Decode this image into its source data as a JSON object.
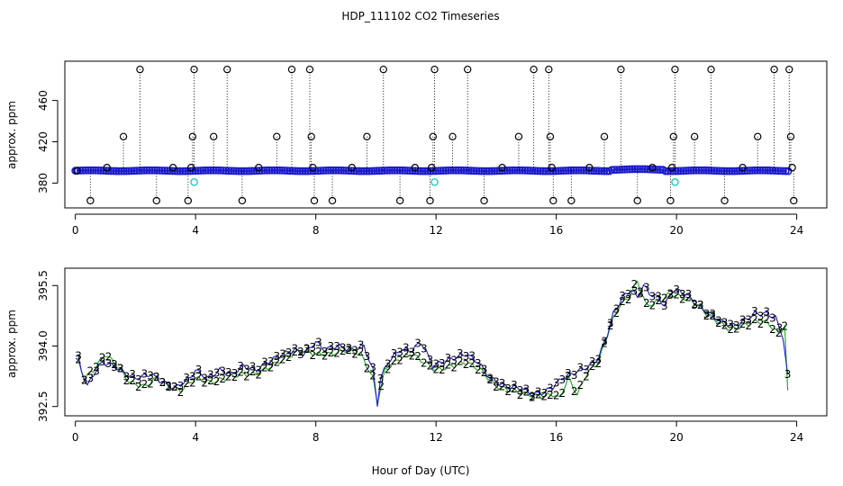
{
  "figure": {
    "title": "HDP_111102  CO2 Timeseries",
    "xlabel": "Hour of Day (UTC)"
  },
  "colors": {
    "black": "#000000",
    "blue": "#1a1acc",
    "green": "#1aa81a",
    "cyan": "#22c8c8"
  },
  "chart_data": [
    {
      "type": "scatter",
      "title": "HDP_111102  CO2 Timeseries",
      "xlabel": "",
      "ylabel": "approx. ppm",
      "xlim": [
        -0.35,
        25
      ],
      "ylim": [
        356,
        498
      ],
      "xticks": [
        0,
        4,
        8,
        12,
        16,
        20,
        24
      ],
      "yticks": [
        380,
        420,
        460
      ],
      "baseline_value": 392,
      "series": [
        {
          "name": "raw_black",
          "marker": "circle",
          "drop_lines": true,
          "points": [
            [
              0.05,
              392
            ],
            [
              0.5,
              363
            ],
            [
              1.05,
              395
            ],
            [
              1.6,
              425
            ],
            [
              2.15,
              490
            ],
            [
              2.7,
              363
            ],
            [
              3.25,
              395
            ],
            [
              3.75,
              363
            ],
            [
              3.85,
              395
            ],
            [
              3.9,
              425
            ],
            [
              3.95,
              490
            ],
            [
              4.6,
              425
            ],
            [
              5.05,
              490
            ],
            [
              5.55,
              363
            ],
            [
              6.1,
              395
            ],
            [
              6.7,
              425
            ],
            [
              7.2,
              490
            ],
            [
              7.8,
              490
            ],
            [
              7.85,
              425
            ],
            [
              7.9,
              395
            ],
            [
              7.95,
              363
            ],
            [
              8.55,
              363
            ],
            [
              9.2,
              395
            ],
            [
              9.7,
              425
            ],
            [
              10.25,
              490
            ],
            [
              10.8,
              363
            ],
            [
              11.3,
              395
            ],
            [
              11.8,
              363
            ],
            [
              11.85,
              395
            ],
            [
              11.9,
              425
            ],
            [
              11.95,
              490
            ],
            [
              12.55,
              425
            ],
            [
              13.05,
              490
            ],
            [
              13.6,
              363
            ],
            [
              14.2,
              395
            ],
            [
              14.75,
              425
            ],
            [
              15.25,
              490
            ],
            [
              15.75,
              490
            ],
            [
              15.8,
              425
            ],
            [
              15.85,
              395
            ],
            [
              15.9,
              363
            ],
            [
              16.5,
              363
            ],
            [
              17.1,
              395
            ],
            [
              17.6,
              425
            ],
            [
              18.15,
              490
            ],
            [
              18.7,
              363
            ],
            [
              19.2,
              395
            ],
            [
              19.8,
              363
            ],
            [
              19.85,
              395
            ],
            [
              19.9,
              425
            ],
            [
              19.95,
              490
            ],
            [
              20.6,
              425
            ],
            [
              21.15,
              490
            ],
            [
              21.6,
              363
            ],
            [
              22.2,
              395
            ],
            [
              22.7,
              425
            ],
            [
              23.25,
              490
            ],
            [
              23.75,
              490
            ],
            [
              23.8,
              425
            ],
            [
              23.85,
              395
            ],
            [
              23.9,
              363
            ]
          ]
        },
        {
          "name": "cyan_outliers",
          "marker": "circle",
          "drop_lines": false,
          "points": [
            [
              3.95,
              381
            ],
            [
              11.95,
              381
            ],
            [
              19.95,
              381
            ]
          ]
        }
      ]
    },
    {
      "type": "scatter",
      "title": "",
      "xlabel": "Hour of Day (UTC)",
      "ylabel": "approx. ppm",
      "xlim": [
        -0.35,
        25
      ],
      "ylim": [
        392.27,
        395.93
      ],
      "xticks": [
        0,
        4,
        8,
        12,
        16,
        20,
        24
      ],
      "yticks": [
        392.5,
        394.0,
        395.5
      ],
      "ytick_labels": [
        "392.5",
        "394.0",
        "395.5"
      ],
      "series": [
        {
          "name": "3",
          "marker_text": "3",
          "anchors": [
            [
              0.1,
              393.7
            ],
            [
              0.2,
              393.4
            ],
            [
              0.4,
              393.0
            ],
            [
              0.6,
              393.3
            ],
            [
              0.9,
              393.6
            ],
            [
              1.3,
              393.5
            ],
            [
              1.7,
              393.3
            ],
            [
              2.0,
              393.2
            ],
            [
              2.5,
              393.3
            ],
            [
              2.9,
              393.1
            ],
            [
              3.3,
              392.95
            ],
            [
              3.8,
              393.2
            ],
            [
              4.0,
              393.4
            ],
            [
              4.4,
              393.2
            ],
            [
              4.8,
              393.4
            ],
            [
              5.2,
              393.3
            ],
            [
              5.6,
              393.5
            ],
            [
              6.0,
              393.4
            ],
            [
              6.4,
              393.6
            ],
            [
              6.9,
              393.8
            ],
            [
              7.3,
              393.9
            ],
            [
              7.6,
              393.8
            ],
            [
              8.0,
              394.1
            ],
            [
              8.3,
              393.9
            ],
            [
              8.7,
              394.0
            ],
            [
              9.2,
              393.9
            ],
            [
              9.6,
              394.0
            ],
            [
              9.9,
              393.4
            ],
            [
              10.05,
              392.55
            ],
            [
              10.15,
              393.2
            ],
            [
              10.4,
              393.6
            ],
            [
              10.8,
              393.9
            ],
            [
              11.2,
              393.9
            ],
            [
              11.5,
              394.1
            ],
            [
              11.9,
              393.5
            ],
            [
              12.2,
              393.6
            ],
            [
              12.6,
              393.7
            ],
            [
              13.0,
              393.8
            ],
            [
              13.4,
              393.6
            ],
            [
              13.8,
              393.2
            ],
            [
              14.3,
              393.0
            ],
            [
              14.8,
              392.95
            ],
            [
              15.2,
              392.8
            ],
            [
              15.6,
              392.85
            ],
            [
              15.9,
              393.0
            ],
            [
              16.2,
              393.2
            ],
            [
              16.5,
              393.3
            ],
            [
              16.8,
              393.4
            ],
            [
              17.1,
              393.5
            ],
            [
              17.4,
              393.7
            ],
            [
              17.7,
              394.3
            ],
            [
              17.9,
              394.8
            ],
            [
              18.2,
              395.2
            ],
            [
              18.5,
              395.4
            ],
            [
              18.7,
              395.2
            ],
            [
              18.9,
              395.5
            ],
            [
              19.1,
              395.3
            ],
            [
              19.4,
              395.2
            ],
            [
              19.6,
              395.0
            ],
            [
              19.9,
              395.4
            ],
            [
              20.3,
              395.3
            ],
            [
              20.7,
              395.0
            ],
            [
              21.1,
              394.8
            ],
            [
              21.5,
              394.6
            ],
            [
              21.9,
              394.5
            ],
            [
              22.2,
              394.6
            ],
            [
              22.6,
              394.8
            ],
            [
              23.0,
              394.8
            ],
            [
              23.3,
              394.7
            ],
            [
              23.55,
              394.2
            ],
            [
              23.7,
              393.3
            ]
          ]
        },
        {
          "name": "2",
          "marker_text": "2",
          "offset": -0.12,
          "anchors": [
            [
              0.1,
              393.6
            ],
            [
              0.3,
              393.2
            ],
            [
              0.6,
              393.4
            ],
            [
              1.0,
              393.8
            ],
            [
              1.4,
              393.5
            ],
            [
              1.8,
              393.1
            ],
            [
              2.3,
              393.0
            ],
            [
              2.7,
              393.2
            ],
            [
              3.1,
              393.0
            ],
            [
              3.5,
              392.9
            ],
            [
              4.0,
              393.2
            ],
            [
              4.5,
              393.1
            ],
            [
              5.0,
              393.2
            ],
            [
              5.5,
              393.3
            ],
            [
              6.0,
              393.3
            ],
            [
              6.5,
              393.5
            ],
            [
              7.0,
              393.7
            ],
            [
              7.5,
              393.9
            ],
            [
              8.0,
              393.8
            ],
            [
              8.5,
              393.8
            ],
            [
              9.0,
              393.9
            ],
            [
              9.5,
              393.8
            ],
            [
              9.9,
              393.2
            ],
            [
              10.05,
              392.6
            ],
            [
              10.3,
              393.4
            ],
            [
              10.8,
              393.7
            ],
            [
              11.2,
              393.8
            ],
            [
              11.6,
              393.6
            ],
            [
              12.0,
              393.4
            ],
            [
              12.5,
              393.5
            ],
            [
              13.0,
              393.6
            ],
            [
              13.5,
              393.4
            ],
            [
              14.0,
              393.0
            ],
            [
              14.5,
              392.9
            ],
            [
              15.0,
              392.8
            ],
            [
              15.5,
              392.75
            ],
            [
              15.9,
              392.8
            ],
            [
              16.1,
              392.7
            ],
            [
              16.4,
              393.2
            ],
            [
              16.7,
              392.8
            ],
            [
              17.0,
              393.3
            ],
            [
              17.4,
              393.6
            ],
            [
              17.8,
              394.5
            ],
            [
              18.1,
              395.0
            ],
            [
              18.4,
              395.2
            ],
            [
              18.7,
              395.6
            ],
            [
              19.0,
              395.0
            ],
            [
              19.4,
              395.1
            ],
            [
              19.8,
              395.3
            ],
            [
              20.2,
              395.2
            ],
            [
              20.6,
              395.1
            ],
            [
              21.0,
              394.8
            ],
            [
              21.4,
              394.6
            ],
            [
              21.8,
              394.4
            ],
            [
              22.2,
              394.5
            ],
            [
              22.6,
              394.6
            ],
            [
              23.0,
              394.6
            ],
            [
              23.4,
              394.3
            ],
            [
              23.6,
              394.5
            ],
            [
              23.7,
              392.9
            ]
          ]
        }
      ]
    }
  ]
}
